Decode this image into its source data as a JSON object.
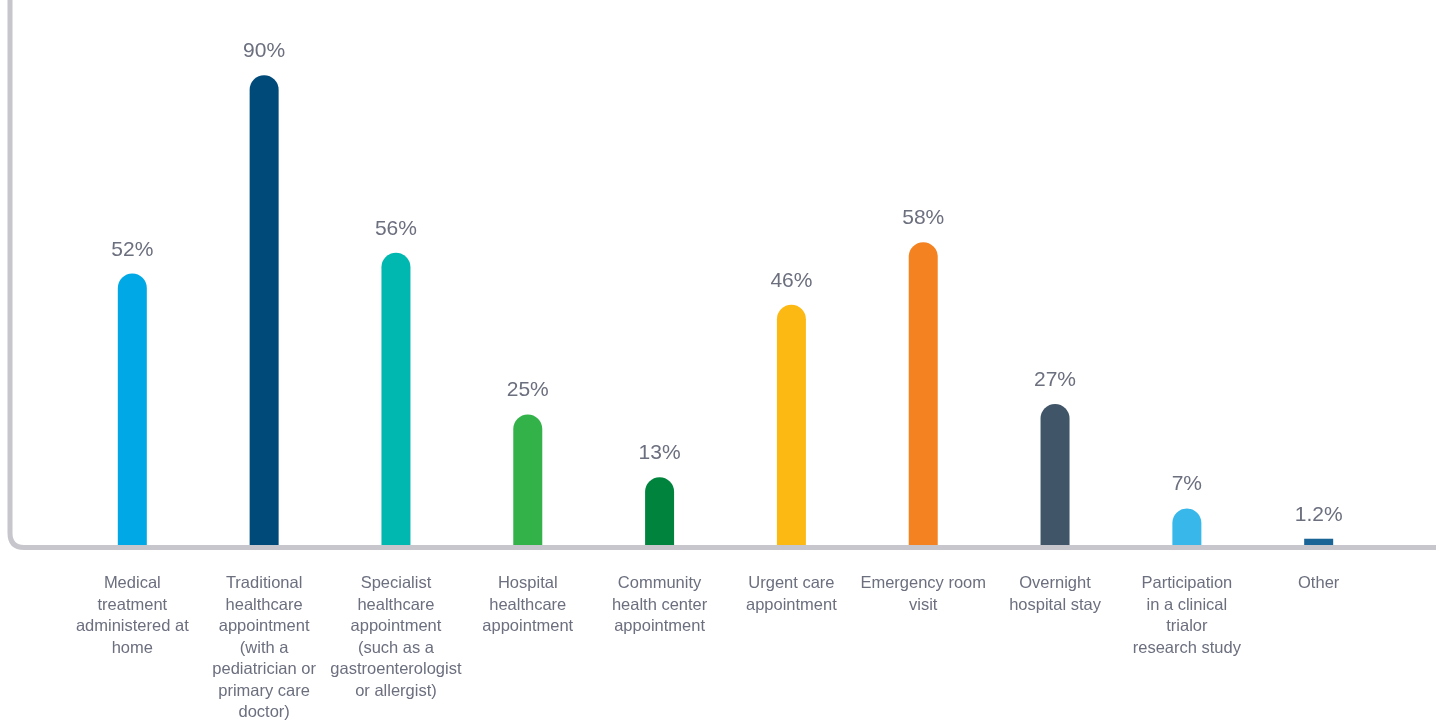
{
  "chart_data": {
    "type": "bar",
    "categories": [
      "Medical treatment administered at home",
      "Traditional healthcare appointment (with a pediatrician or primary care doctor)",
      "Specialist healthcare appointment (such as a gastroenterologist or allergist)",
      "Hospital healthcare appointment",
      "Community health center appointment",
      "Urgent care appointment",
      "Emergency room visit",
      "Overnight hospital stay",
      "Participation in a clinical trialor research study",
      "Other"
    ],
    "values": [
      52,
      90,
      56,
      25,
      13,
      46,
      58,
      27,
      7,
      1.2
    ],
    "colors": [
      "#00a9e6",
      "#004a7a",
      "#00b8b0",
      "#33b24a",
      "#00843d",
      "#fdb913",
      "#f58220",
      "#415568",
      "#38b8ea",
      "#1a6496"
    ],
    "value_labels": [
      "52%",
      "90%",
      "56%",
      "25%",
      "13%",
      "46%",
      "58%",
      "27%",
      "7%",
      "1.2%"
    ]
  }
}
